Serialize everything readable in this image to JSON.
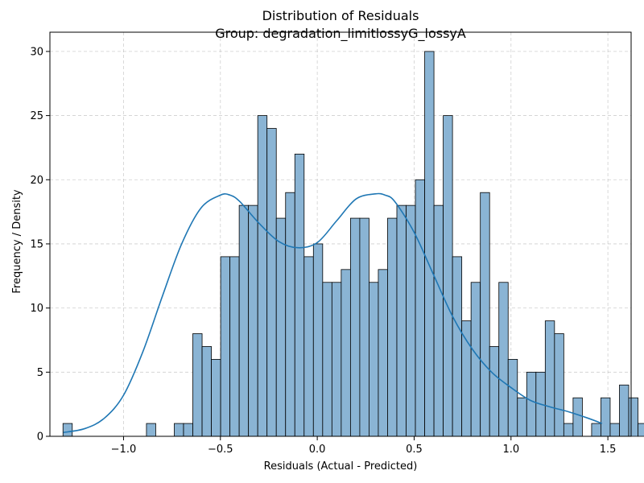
{
  "chart_data": {
    "type": "bar",
    "title": "Distribution of Residuals",
    "subtitle": "Group: degradation_limitlossyG_lossyA",
    "xlabel": "Residuals (Actual - Predicted)",
    "ylabel": "Frequency / Density",
    "xlim": [
      -1.38,
      1.62
    ],
    "ylim": [
      0,
      31.5
    ],
    "xticks": [
      -1.0,
      -0.5,
      0.0,
      0.5,
      1.0,
      1.5
    ],
    "xtick_labels": [
      "−1.0",
      "−0.5",
      "0.0",
      "0.5",
      "1.0",
      "1.5"
    ],
    "yticks": [
      0,
      5,
      10,
      15,
      20,
      25,
      30
    ],
    "ytick_labels": [
      "0",
      "5",
      "10",
      "15",
      "20",
      "25",
      "30"
    ],
    "grid": true,
    "bin_start": -1.3125,
    "bin_width": 0.04787,
    "counts": [
      1,
      0,
      0,
      0,
      0,
      0,
      0,
      0,
      0,
      1,
      0,
      0,
      1,
      1,
      8,
      7,
      6,
      14,
      14,
      18,
      18,
      25,
      24,
      17,
      19,
      22,
      14,
      15,
      12,
      12,
      13,
      17,
      17,
      12,
      13,
      17,
      18,
      18,
      20,
      30,
      18,
      25,
      14,
      9,
      12,
      19,
      7,
      12,
      6,
      3,
      5,
      5,
      9,
      8,
      1,
      3,
      0,
      1,
      3,
      1,
      4,
      3,
      1,
      1
    ],
    "kde": {
      "x": [
        -1.31,
        -1.2,
        -1.1,
        -1.0,
        -0.9,
        -0.8,
        -0.7,
        -0.6,
        -0.5,
        -0.45,
        -0.4,
        -0.3,
        -0.2,
        -0.1,
        0.0,
        0.1,
        0.2,
        0.3,
        0.35,
        0.4,
        0.5,
        0.6,
        0.7,
        0.8,
        0.9,
        1.0,
        1.1,
        1.2,
        1.3,
        1.4,
        1.47
      ],
      "y": [
        0.3,
        0.6,
        1.4,
        3.2,
        6.6,
        10.9,
        15.0,
        17.8,
        18.8,
        18.8,
        18.3,
        16.6,
        15.2,
        14.7,
        15.1,
        16.8,
        18.5,
        18.9,
        18.8,
        18.3,
        15.9,
        12.6,
        9.3,
        6.8,
        5.0,
        3.8,
        2.8,
        2.3,
        1.9,
        1.4,
        1.0
      ]
    },
    "bar_color": "#8ab4d4",
    "kde_color": "#1f77b4"
  }
}
